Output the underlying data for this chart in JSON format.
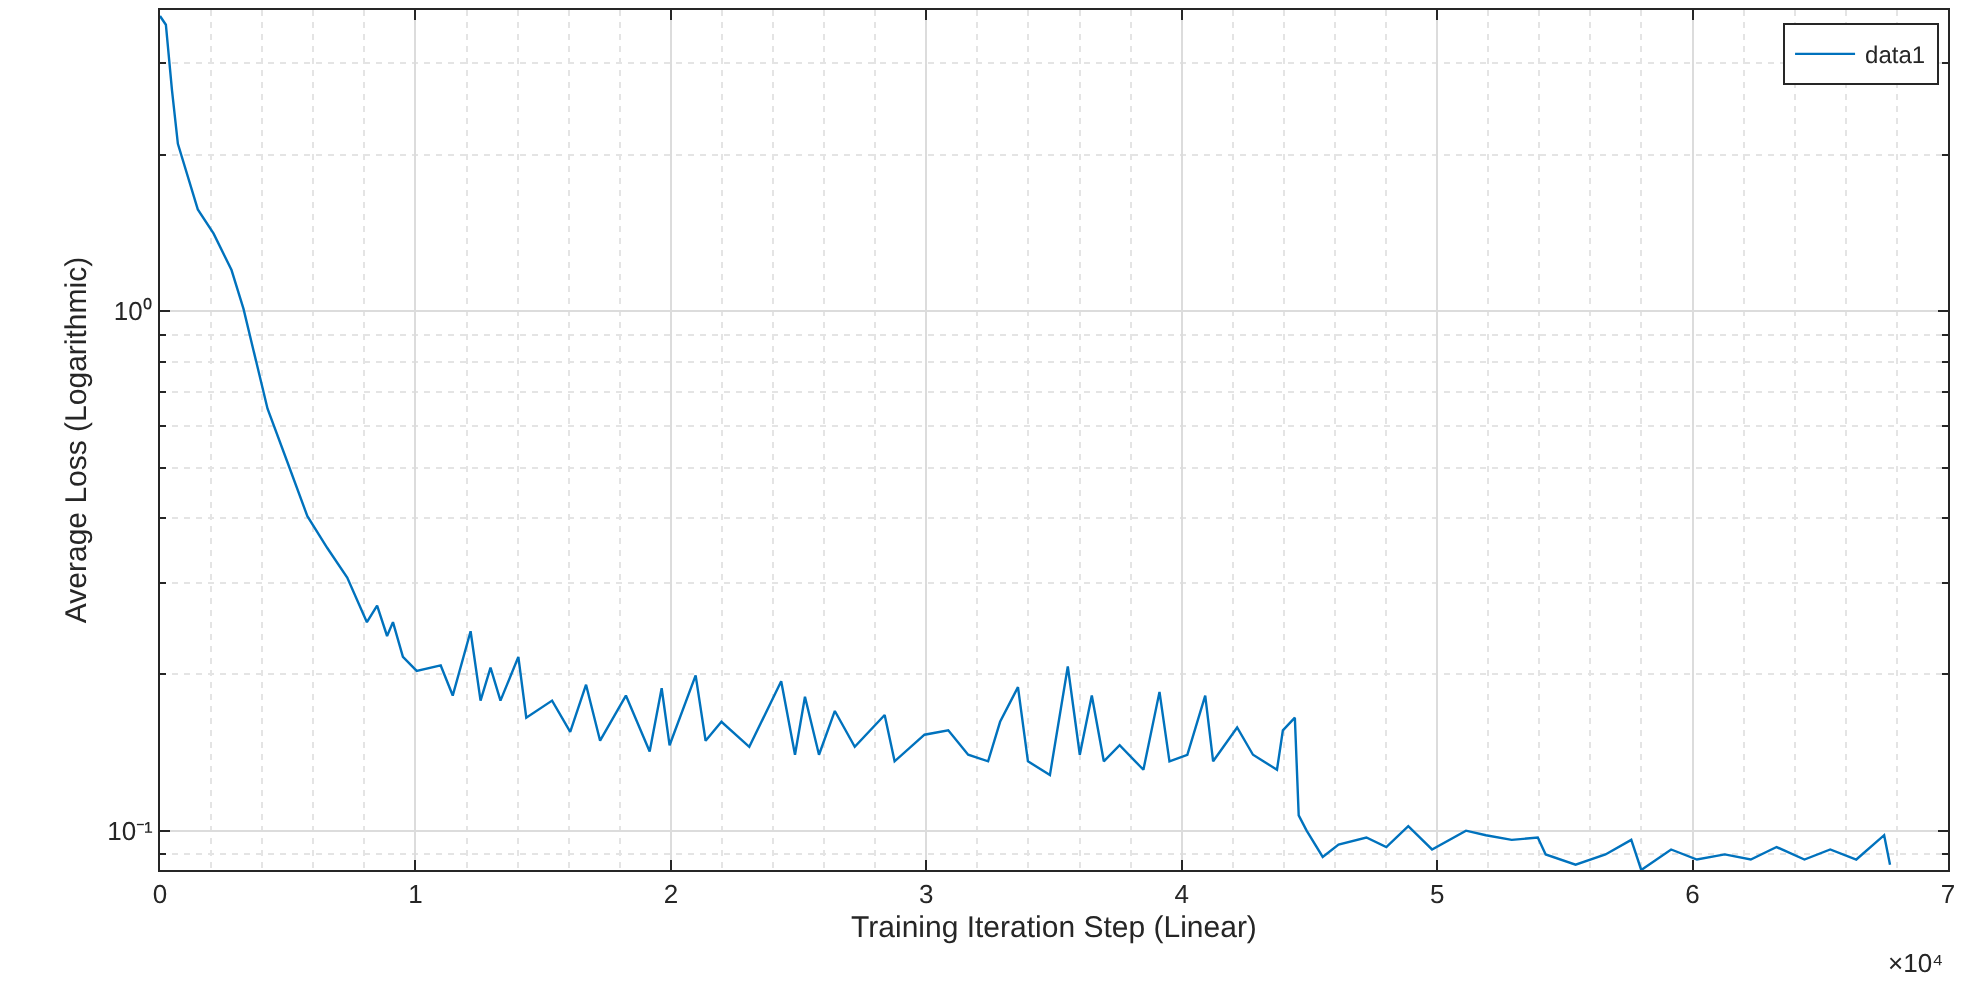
{
  "chart_data": {
    "type": "line",
    "xlabel": "Training Iteration Step (Linear)",
    "ylabel": "Average Loss (Logarithmic)",
    "annotations": [
      "×10⁴"
    ],
    "xlim": [
      0,
      7
    ],
    "xticks": [
      0,
      1,
      2,
      3,
      4,
      5,
      6,
      7
    ],
    "ylim": [
      0.084,
      3.8
    ],
    "yticks": [
      {
        "value": 0.1,
        "label": "10⁻¹"
      },
      {
        "value": 1,
        "label": "10⁰"
      }
    ],
    "log": "y",
    "grid": true,
    "legend": "top right",
    "line_style": "solid",
    "marker": "none",
    "series": [
      {
        "name": "data1",
        "color": "#0072bd",
        "x": [
          0,
          0.023,
          0.047,
          0.07,
          0.148,
          0.21,
          0.28,
          0.327,
          0.421,
          0.499,
          0.577,
          0.655,
          0.733,
          0.81,
          0.85,
          0.889,
          0.912,
          0.951,
          1.005,
          1.099,
          1.146,
          1.216,
          1.255,
          1.294,
          1.333,
          1.403,
          1.434,
          1.535,
          1.606,
          1.668,
          1.723,
          1.824,
          1.917,
          1.964,
          1.995,
          2.097,
          2.136,
          2.198,
          2.307,
          2.432,
          2.486,
          2.525,
          2.58,
          2.642,
          2.72,
          2.837,
          2.876,
          2.993,
          3.086,
          3.164,
          3.242,
          3.289,
          3.359,
          3.398,
          3.484,
          3.554,
          3.601,
          3.648,
          3.695,
          3.757,
          3.85,
          3.913,
          3.952,
          4.022,
          4.092,
          4.123,
          4.217,
          4.279,
          4.373,
          4.396,
          4.443,
          4.458,
          4.489,
          4.552,
          4.614,
          4.723,
          4.801,
          4.887,
          4.98,
          5.113,
          5.191,
          5.292,
          5.394,
          5.425,
          5.542,
          5.659,
          5.76,
          5.799,
          5.916,
          6.017,
          6.126,
          6.228,
          6.329,
          6.438,
          6.539,
          6.641,
          6.75,
          6.773
        ],
        "values": [
          3.7,
          3.56,
          2.66,
          2.1,
          1.57,
          1.41,
          1.2,
          1.01,
          0.649,
          0.512,
          0.403,
          0.35,
          0.307,
          0.252,
          0.271,
          0.237,
          0.252,
          0.216,
          0.203,
          0.208,
          0.182,
          0.242,
          0.178,
          0.206,
          0.178,
          0.216,
          0.165,
          0.178,
          0.155,
          0.191,
          0.149,
          0.182,
          0.142,
          0.188,
          0.146,
          0.199,
          0.149,
          0.162,
          0.145,
          0.194,
          0.14,
          0.181,
          0.14,
          0.17,
          0.145,
          0.167,
          0.136,
          0.153,
          0.156,
          0.14,
          0.136,
          0.162,
          0.189,
          0.136,
          0.128,
          0.207,
          0.14,
          0.182,
          0.136,
          0.146,
          0.131,
          0.185,
          0.136,
          0.14,
          0.182,
          0.136,
          0.158,
          0.14,
          0.131,
          0.156,
          0.165,
          0.107,
          0.1,
          0.089,
          0.094,
          0.097,
          0.093,
          0.102,
          0.092,
          0.1,
          0.098,
          0.096,
          0.097,
          0.09,
          0.086,
          0.09,
          0.096,
          0.084,
          0.092,
          0.088,
          0.09,
          0.088,
          0.093,
          0.088,
          0.092,
          0.088,
          0.098,
          0.086
        ]
      }
    ]
  }
}
